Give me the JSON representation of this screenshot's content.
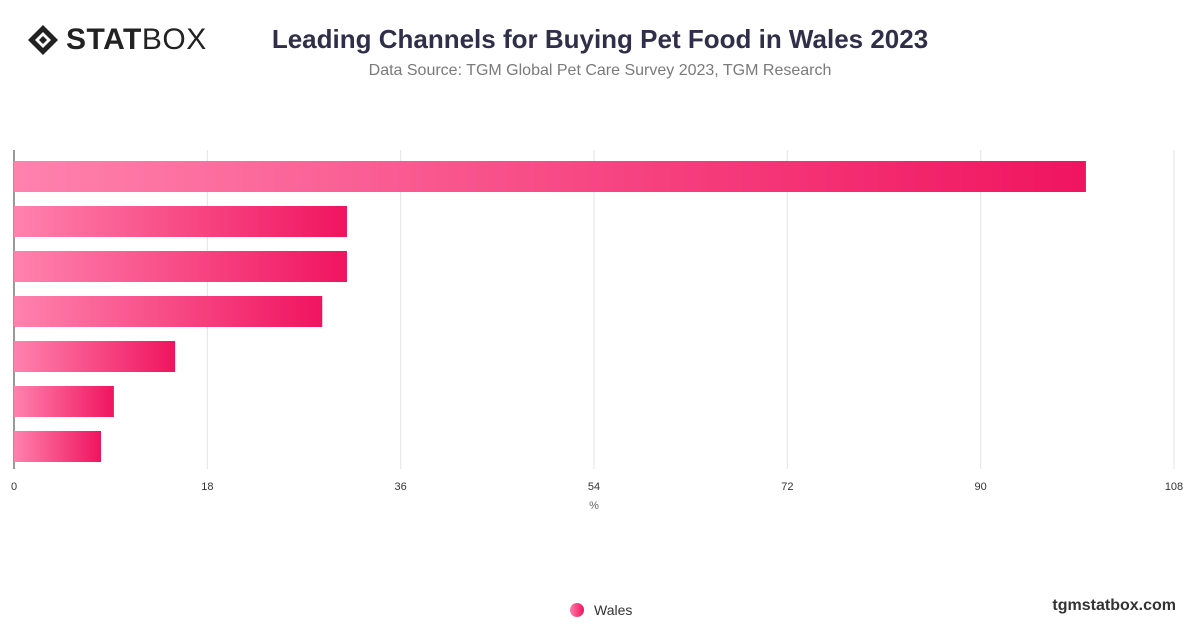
{
  "brand": {
    "logo_stat": "STAT",
    "logo_box": "BOX",
    "site": "tgmstatbox.com"
  },
  "header": {
    "title": "Leading Channels for Buying Pet Food in Wales 2023",
    "subtitle": "Data Source: TGM Global Pet Care Survey 2023, TGM Research"
  },
  "legend": {
    "label": "Wales"
  },
  "colors": {
    "bar_start": "#ff82ad",
    "bar_end": "#f0145f",
    "grid": "#e3e3e3",
    "axis": "#333333"
  },
  "chart_data": {
    "type": "bar",
    "orientation": "horizontal",
    "title": "Leading Channels for Buying Pet Food in Wales 2023",
    "subtitle": "Data Source: TGM Global Pet Care Survey 2023, TGM Research",
    "xlabel": "%",
    "ylabel": "",
    "xlim": [
      0,
      108
    ],
    "xticks": [
      0,
      18,
      36,
      54,
      72,
      90,
      108
    ],
    "categories": [
      "",
      "",
      "",
      "",
      "",
      "",
      ""
    ],
    "series": [
      {
        "name": "Wales",
        "values": [
          99.8,
          31,
          31,
          28.7,
          15,
          9.3,
          8.1
        ]
      }
    ],
    "grid": true,
    "legend_position": "bottom-center"
  }
}
